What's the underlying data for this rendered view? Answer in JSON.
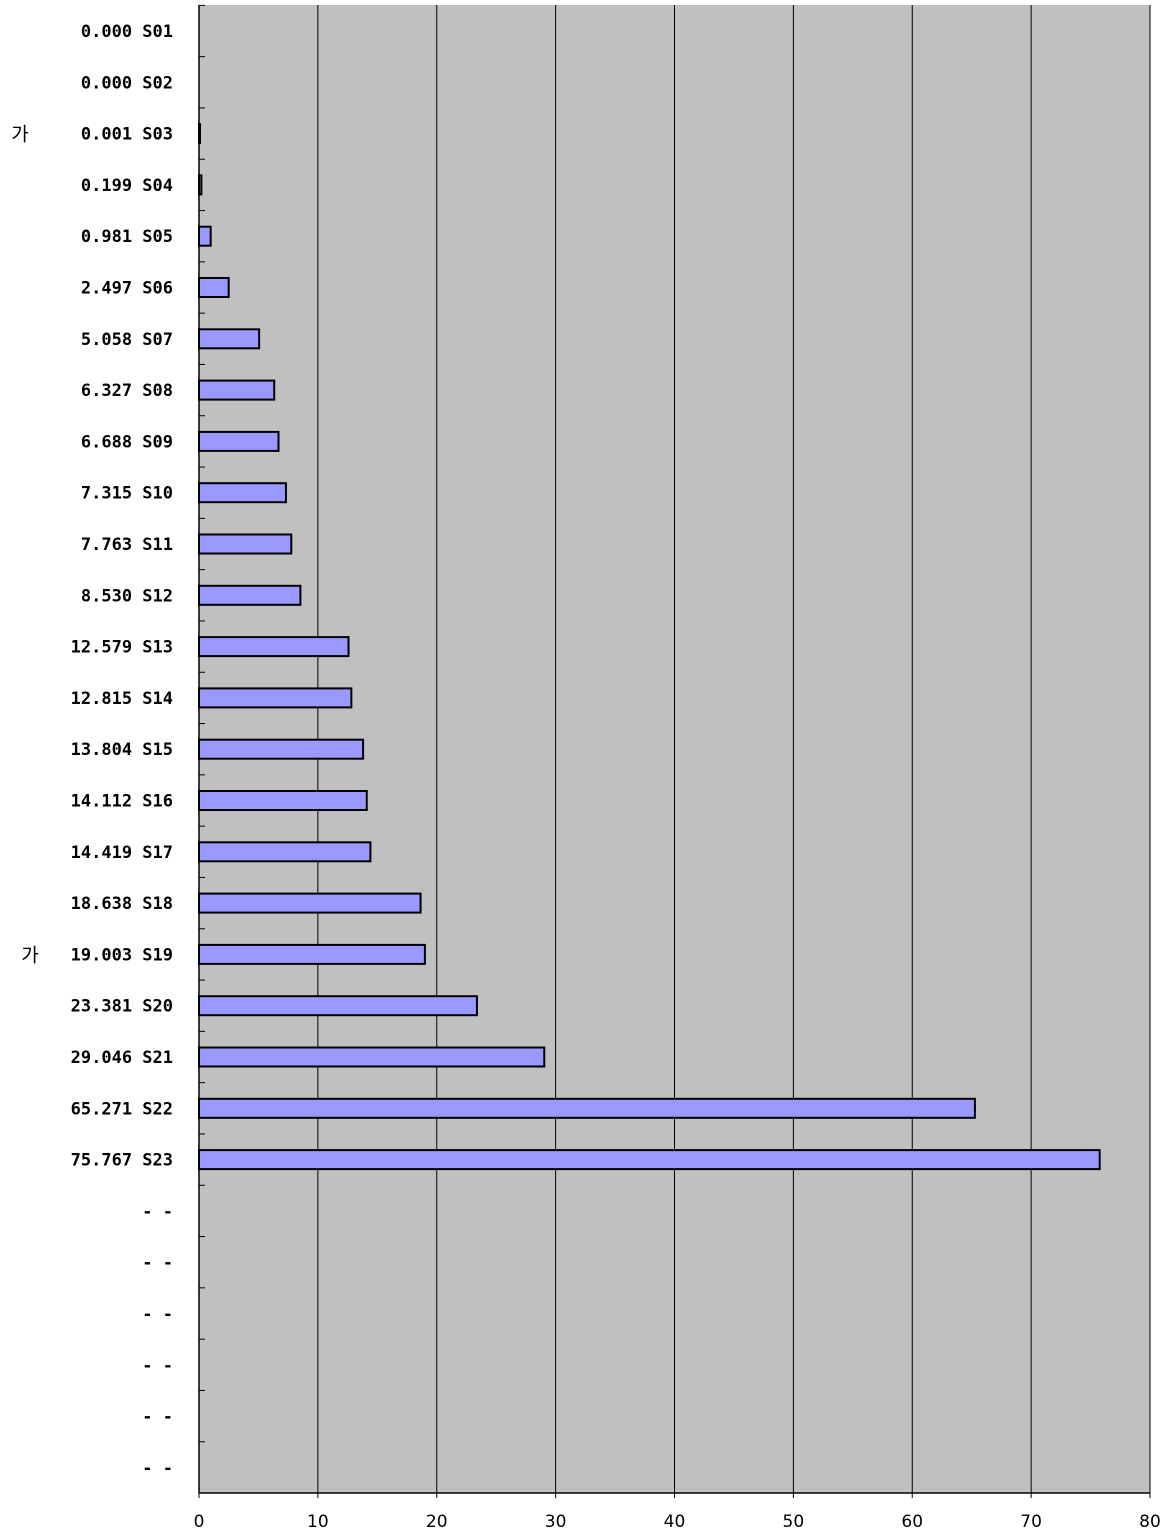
{
  "chart_data": {
    "type": "bar",
    "orientation": "horizontal",
    "title": "",
    "xlabel": "",
    "ylabel": "",
    "xlim": [
      0,
      80
    ],
    "x_ticks": [
      0,
      10,
      20,
      30,
      40,
      50,
      60,
      70,
      80
    ],
    "grid": "vertical",
    "plot_background": "#c0c0c0",
    "bar_color": "#9999ff",
    "categories": [
      "0.000 S01",
      "0.000 S02",
      "0.001 S03",
      "0.199 S04",
      "0.981 S05",
      "2.497 S06",
      "5.058 S07",
      "6.327 S08",
      "6.688 S09",
      "7.315 S10",
      "7.763 S11",
      "8.530 S12",
      "12.579 S13",
      "12.815 S14",
      "13.804 S15",
      "14.112 S16",
      "14.419 S17",
      "18.638 S18",
      "19.003 S19",
      "23.381 S20",
      "29.046 S21",
      "65.271 S22",
      "75.767 S23",
      "- -",
      "- -",
      "- -",
      "- -",
      "- -",
      "- -"
    ],
    "values": [
      0.0,
      0.0,
      0.001,
      0.199,
      0.981,
      2.497,
      5.058,
      6.327,
      6.688,
      7.315,
      7.763,
      8.53,
      12.579,
      12.815,
      13.804,
      14.112,
      14.419,
      18.638,
      19.003,
      23.381,
      29.046,
      65.271,
      75.767,
      null,
      null,
      null,
      null,
      null,
      null
    ],
    "side_notes": [
      {
        "category_index": 2,
        "text": "가"
      },
      {
        "category_index": 18,
        "text": "가"
      }
    ]
  }
}
